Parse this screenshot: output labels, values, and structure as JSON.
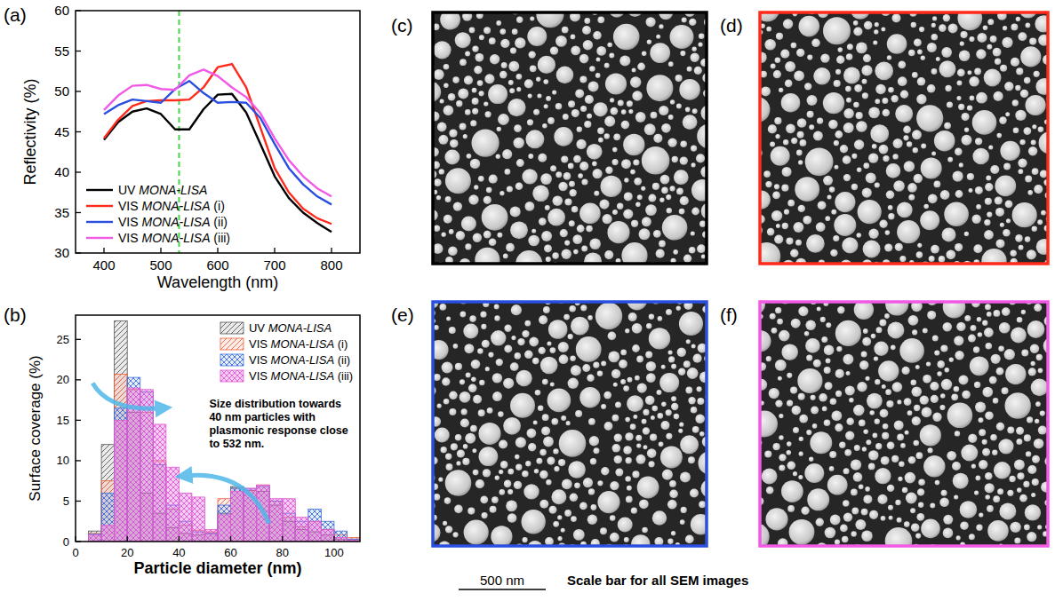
{
  "chart_data": [
    {
      "type": "line",
      "x_label": "Wavelength (nm)",
      "y_label": "Reflectivity (%)",
      "x": [
        400,
        425,
        450,
        475,
        500,
        525,
        550,
        575,
        600,
        625,
        650,
        675,
        700,
        725,
        750,
        775,
        800
      ],
      "series": [
        {
          "name": "UV MONA-LISA",
          "color": "#000000",
          "values": [
            44,
            46.2,
            47.5,
            47.9,
            47.2,
            45.3,
            45.3,
            47.8,
            49.6,
            49.7,
            47.4,
            43.5,
            39.5,
            36.8,
            35,
            33.7,
            32.6
          ]
        },
        {
          "name": "VIS MONA-LISA (i)",
          "color": "#ff2a1a",
          "values": [
            44.2,
            46.5,
            48.2,
            48.8,
            48.9,
            48.9,
            49,
            50.5,
            53,
            53.4,
            50.5,
            45.5,
            40.5,
            37.5,
            35.5,
            34.3,
            33.6
          ]
        },
        {
          "name": "VIS MONA-LISA (ii)",
          "color": "#2a4fe0",
          "values": [
            47.2,
            48.3,
            49,
            48.8,
            48.6,
            50.3,
            51.3,
            49.8,
            48.6,
            48.7,
            48.6,
            46.7,
            43.5,
            40.5,
            38.5,
            37,
            36
          ]
        },
        {
          "name": "VIS MONA-LISA (iii)",
          "color": "#f25ae6",
          "values": [
            47.7,
            49.5,
            50.7,
            50.8,
            50.3,
            50.2,
            52,
            52.7,
            51.9,
            50.5,
            49.3,
            47.3,
            44.2,
            41.5,
            39.5,
            38,
            37
          ]
        }
      ],
      "reference_line": {
        "x": 532,
        "color": "#44d444",
        "line_style": "dashed"
      },
      "xlim": [
        350,
        850
      ],
      "xticks": [
        400,
        500,
        600,
        700,
        800
      ],
      "ylim": [
        30,
        60
      ],
      "yticks": [
        30,
        35,
        40,
        45,
        50,
        55,
        60
      ],
      "legend": "lower left",
      "grid": false
    },
    {
      "type": "histogram",
      "x_label": "Particle diameter (nm)",
      "y_label": "Surface coverage (%)",
      "bins": [
        5,
        10,
        15,
        20,
        25,
        30,
        35,
        40,
        45,
        50,
        55,
        60,
        65,
        70,
        75,
        80,
        85,
        90,
        95,
        100,
        105,
        110
      ],
      "series": [
        {
          "name": "UV MONA-LISA",
          "color": "#555555",
          "values": [
            1.3,
            12,
            27.3,
            16,
            6,
            3.5,
            1.7,
            1,
            0.8,
            1,
            3.5,
            6.8,
            6.3,
            6.2,
            4.5,
            2.5,
            1.5,
            1.2,
            0.8,
            0.3,
            0.3
          ]
        },
        {
          "name": "VIS MONA-LISA (i)",
          "color": "#f0603c",
          "values": [
            1,
            7.5,
            20.7,
            18.8,
            16,
            10,
            4,
            2,
            1.4,
            1.2,
            5.3,
            6.6,
            6.3,
            7,
            5,
            3,
            1.8,
            2.5,
            1.5,
            0.8,
            0.5
          ]
        },
        {
          "name": "VIS MONA-LISA (ii)",
          "color": "#3a6ee0",
          "values": [
            0.9,
            6,
            16.5,
            20.3,
            18.5,
            9.5,
            4.5,
            2.5,
            1.2,
            1,
            4.5,
            6.6,
            6.5,
            6.8,
            5,
            3.5,
            2.5,
            4,
            2.5,
            1.3,
            0.3
          ]
        },
        {
          "name": "VIS MONA-LISA (iii)",
          "color": "#e05ad6",
          "values": [
            0.8,
            2,
            15,
            19,
            18.8,
            14.5,
            9.2,
            6,
            5.5,
            1.5,
            3.3,
            6.2,
            6.6,
            7,
            5.3,
            5.3,
            3,
            2.5,
            1.5,
            0.5,
            0.2
          ]
        }
      ],
      "annotation": "Size distribution  towards 40 nm particles with plasmonic response close to 532 nm.",
      "xlim": [
        0,
        110
      ],
      "xticks": [
        0,
        20,
        40,
        60,
        80,
        100
      ],
      "ylim": [
        0,
        28
      ],
      "yticks": [
        0,
        5,
        10,
        15,
        20,
        25
      ],
      "legend": "upper right",
      "grid": false
    }
  ],
  "panel_labels": {
    "a": "(a)",
    "b": "(b)",
    "c": "(c)",
    "d": "(d)",
    "e": "(e)",
    "f": "(f)"
  },
  "sem_images": [
    {
      "panel": "c",
      "color": "#000000"
    },
    {
      "panel": "d",
      "color": "#ff2a1a"
    },
    {
      "panel": "e",
      "color": "#2a4fe0"
    },
    {
      "panel": "f",
      "color": "#f25ae6"
    }
  ],
  "scale_bar": {
    "label": "500 nm",
    "caption": "Scale bar for all SEM images"
  }
}
